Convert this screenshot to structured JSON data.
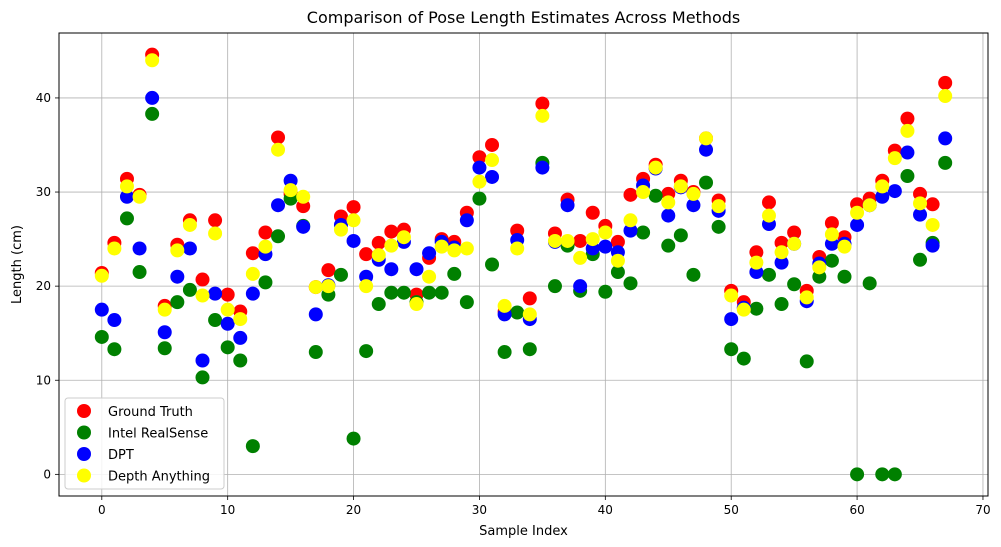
{
  "chart_data": {
    "type": "scatter",
    "title": "Comparison of Pose Length Estimates Across Methods",
    "xlabel": "Sample Index",
    "ylabel": "Length (cm)",
    "xlim": [
      -3.4,
      70.4
    ],
    "ylim": [
      -2.3,
      46.9
    ],
    "xticks": [
      0,
      10,
      20,
      30,
      40,
      50,
      60,
      70
    ],
    "yticks": [
      0,
      10,
      20,
      30,
      40
    ],
    "grid": true,
    "legend_position": "lower-left",
    "x": [
      0,
      1,
      2,
      3,
      4,
      5,
      6,
      7,
      8,
      9,
      10,
      11,
      12,
      13,
      14,
      15,
      16,
      17,
      18,
      19,
      20,
      21,
      22,
      23,
      24,
      25,
      26,
      27,
      28,
      29,
      30,
      31,
      32,
      33,
      34,
      35,
      36,
      37,
      38,
      39,
      40,
      41,
      42,
      43,
      44,
      45,
      46,
      47,
      48,
      49,
      50,
      51,
      52,
      53,
      54,
      55,
      56,
      57,
      58,
      59,
      60,
      61,
      62,
      63,
      64,
      65,
      66,
      67
    ],
    "series": [
      {
        "name": "Ground Truth",
        "color": "#ff0000",
        "values": [
          21.4,
          24.6,
          31.4,
          29.7,
          44.6,
          17.9,
          24.4,
          27.0,
          20.7,
          27.0,
          19.1,
          17.3,
          23.5,
          25.7,
          35.8,
          29.8,
          28.5,
          19.9,
          21.7,
          27.4,
          28.4,
          23.4,
          24.6,
          25.8,
          26.0,
          19.1,
          23.0,
          25.0,
          24.7,
          27.8,
          33.7,
          35.0,
          17.3,
          25.9,
          18.7,
          39.4,
          25.6,
          29.2,
          24.8,
          27.8,
          26.4,
          24.7,
          29.7,
          31.4,
          32.9,
          29.8,
          31.2,
          30.0,
          35.7,
          29.1,
          19.5,
          18.3,
          23.6,
          28.9,
          24.6,
          25.7,
          19.5,
          23.1,
          26.7,
          25.2,
          28.7,
          29.3,
          31.2,
          34.4,
          37.8,
          29.8,
          28.7,
          41.6
        ]
      },
      {
        "name": "Intel RealSense",
        "color": "#008000",
        "values": [
          14.6,
          13.3,
          27.2,
          21.5,
          38.3,
          13.4,
          18.3,
          19.6,
          10.3,
          16.4,
          13.5,
          12.1,
          3.0,
          20.4,
          25.3,
          29.3,
          26.4,
          13.0,
          19.1,
          21.2,
          3.8,
          13.1,
          18.1,
          19.3,
          19.3,
          18.3,
          19.3,
          19.3,
          21.3,
          18.3,
          29.3,
          22.3,
          13.0,
          17.2,
          13.3,
          33.1,
          20.0,
          24.3,
          19.5,
          23.4,
          19.4,
          21.5,
          20.3,
          25.7,
          29.6,
          24.3,
          25.4,
          21.2,
          31.0,
          26.3,
          13.3,
          12.3,
          17.6,
          21.2,
          18.1,
          20.2,
          12.0,
          21.0,
          22.7,
          21.0,
          0.0,
          20.3,
          0.0,
          0.0,
          31.7,
          22.8,
          24.6,
          33.1
        ]
      },
      {
        "name": "DPT",
        "color": "#0000ff",
        "values": [
          17.5,
          16.4,
          29.5,
          24.0,
          40.0,
          15.1,
          21.0,
          24.0,
          12.1,
          19.2,
          16.0,
          14.5,
          19.2,
          23.4,
          28.6,
          31.2,
          26.3,
          17.0,
          20.1,
          26.5,
          24.8,
          21.0,
          22.8,
          21.8,
          24.7,
          21.8,
          23.5,
          24.7,
          24.1,
          27.0,
          32.6,
          31.6,
          17.0,
          24.9,
          16.5,
          32.6,
          24.7,
          28.6,
          20.0,
          24.0,
          24.2,
          23.6,
          25.9,
          30.7,
          32.5,
          27.5,
          30.5,
          28.6,
          34.5,
          28.0,
          16.5,
          17.7,
          21.5,
          26.6,
          22.5,
          24.5,
          18.4,
          22.4,
          24.5,
          24.5,
          26.5,
          28.6,
          29.5,
          30.1,
          34.2,
          27.6,
          24.3,
          35.7
        ]
      },
      {
        "name": "Depth Anything",
        "color": "#ffff00",
        "values": [
          21.1,
          24.0,
          30.6,
          29.5,
          44.0,
          17.5,
          23.8,
          26.5,
          19.0,
          25.6,
          17.5,
          16.5,
          21.3,
          24.2,
          34.5,
          30.2,
          29.5,
          19.9,
          20.0,
          26.0,
          27.0,
          20.0,
          23.3,
          24.3,
          25.2,
          18.1,
          21.0,
          24.2,
          23.8,
          24.0,
          31.1,
          33.4,
          17.9,
          24.0,
          17.0,
          38.1,
          24.8,
          24.8,
          23.0,
          25.0,
          25.7,
          22.7,
          27.0,
          30.0,
          32.6,
          28.9,
          30.6,
          29.8,
          35.7,
          28.5,
          19.0,
          17.5,
          22.5,
          27.5,
          23.6,
          24.5,
          18.8,
          22.0,
          25.5,
          24.2,
          27.8,
          28.6,
          30.6,
          33.6,
          36.5,
          28.8,
          26.5,
          40.2
        ]
      }
    ]
  }
}
